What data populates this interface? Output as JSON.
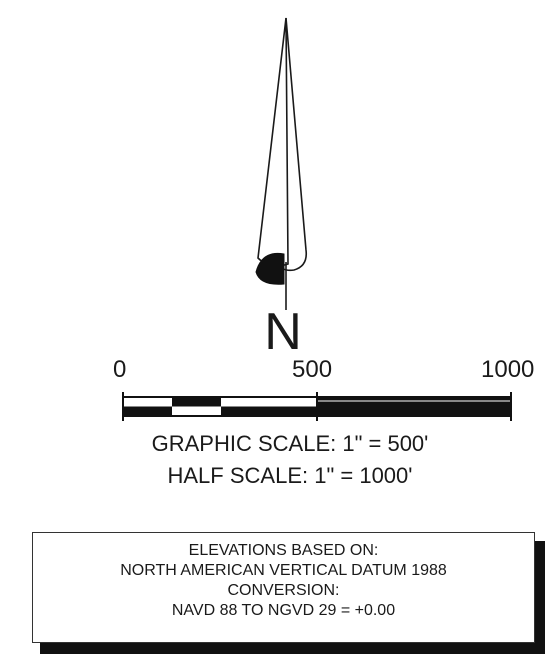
{
  "north_arrow": {
    "icon": "north-arrow-icon",
    "letter": "N"
  },
  "scale_bar": {
    "labels": [
      "0",
      "500",
      "1000"
    ],
    "caption_graphic": "GRAPHIC SCALE: 1\" = 500'",
    "caption_half": "HALF SCALE: 1\" = 1000'"
  },
  "datum_note": {
    "lines": [
      "ELEVATIONS BASED ON:",
      "NORTH AMERICAN VERTICAL DATUM 1988",
      "CONVERSION:",
      "NAVD 88 TO NGVD 29 = +0.00"
    ]
  },
  "colors": {
    "ink": "#1a1a1a",
    "background": "#ffffff"
  }
}
